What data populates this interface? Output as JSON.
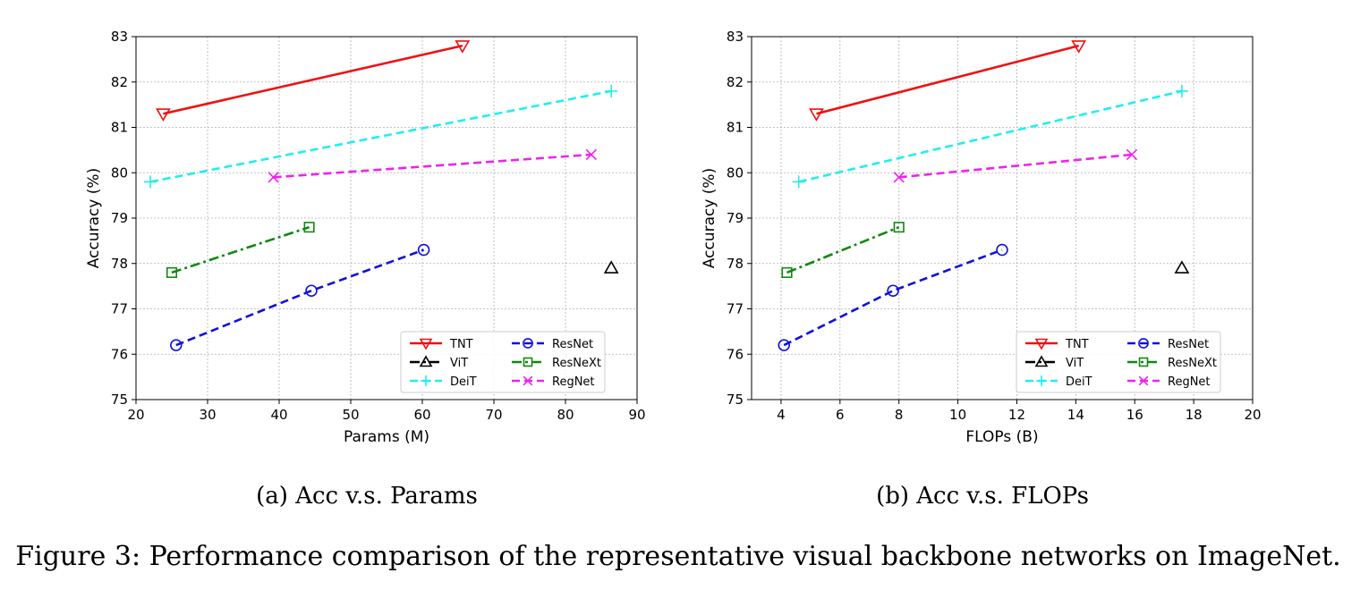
{
  "figure_caption": "Figure 3: Performance comparison of the representative visual backbone networks on ImageNet.",
  "colors": {
    "TNT": "#ee1111",
    "ViT": "#000000",
    "DeiT": "#22eeee",
    "ResNet": "#1111dd",
    "ResNeXt": "#118811",
    "RegNet": "#ee22ee"
  },
  "chart_data": [
    {
      "type": "line",
      "caption": "(a) Acc v.s. Params",
      "xlabel": "Params (M)",
      "ylabel": "Accuracy (%)",
      "xlim": [
        20,
        90
      ],
      "ylim": [
        75,
        83
      ],
      "xticks": [
        20,
        30,
        40,
        50,
        60,
        70,
        80,
        90
      ],
      "yticks": [
        75,
        76,
        77,
        78,
        79,
        80,
        81,
        82,
        83
      ],
      "grid": true,
      "legend_position": "lower-right",
      "series": [
        {
          "name": "TNT",
          "x": [
            23.8,
            65.6
          ],
          "y": [
            81.3,
            82.8
          ],
          "marker": "triangle-down",
          "line": "solid"
        },
        {
          "name": "ViT",
          "x": [
            86.4
          ],
          "y": [
            77.9
          ],
          "marker": "triangle-up",
          "line": "dashdot"
        },
        {
          "name": "DeiT",
          "x": [
            22,
            86.4
          ],
          "y": [
            79.8,
            81.8
          ],
          "marker": "plus",
          "line": "dashed"
        },
        {
          "name": "ResNet",
          "x": [
            25.6,
            44.5,
            60.2
          ],
          "y": [
            76.2,
            77.4,
            78.3
          ],
          "marker": "circle",
          "line": "dashed"
        },
        {
          "name": "ResNeXt",
          "x": [
            25,
            44.2
          ],
          "y": [
            77.8,
            78.8
          ],
          "marker": "square",
          "line": "dashdot"
        },
        {
          "name": "RegNet",
          "x": [
            39.2,
            83.6
          ],
          "y": [
            79.9,
            80.4
          ],
          "marker": "x",
          "line": "dashed"
        }
      ]
    },
    {
      "type": "line",
      "caption": "(b) Acc v.s. FLOPs",
      "xlabel": "FLOPs (B)",
      "ylabel": "Accuracy (%)",
      "xlim": [
        3,
        20
      ],
      "ylim": [
        75,
        83
      ],
      "xticks": [
        4,
        6,
        8,
        10,
        12,
        14,
        16,
        18,
        20
      ],
      "yticks": [
        75,
        76,
        77,
        78,
        79,
        80,
        81,
        82,
        83
      ],
      "grid": true,
      "legend_position": "lower-right",
      "series": [
        {
          "name": "TNT",
          "x": [
            5.2,
            14.1
          ],
          "y": [
            81.3,
            82.8
          ],
          "marker": "triangle-down",
          "line": "solid"
        },
        {
          "name": "ViT",
          "x": [
            17.6
          ],
          "y": [
            77.9
          ],
          "marker": "triangle-up",
          "line": "dashdot"
        },
        {
          "name": "DeiT",
          "x": [
            4.6,
            17.6
          ],
          "y": [
            79.8,
            81.8
          ],
          "marker": "plus",
          "line": "dashed"
        },
        {
          "name": "ResNet",
          "x": [
            4.1,
            7.8,
            11.5
          ],
          "y": [
            76.2,
            77.4,
            78.3
          ],
          "marker": "circle",
          "line": "dashed"
        },
        {
          "name": "ResNeXt",
          "x": [
            4.2,
            8.0
          ],
          "y": [
            77.8,
            78.8
          ],
          "marker": "square",
          "line": "dashdot"
        },
        {
          "name": "RegNet",
          "x": [
            8.0,
            15.9
          ],
          "y": [
            79.9,
            80.4
          ],
          "marker": "x",
          "line": "dashed"
        }
      ]
    }
  ]
}
